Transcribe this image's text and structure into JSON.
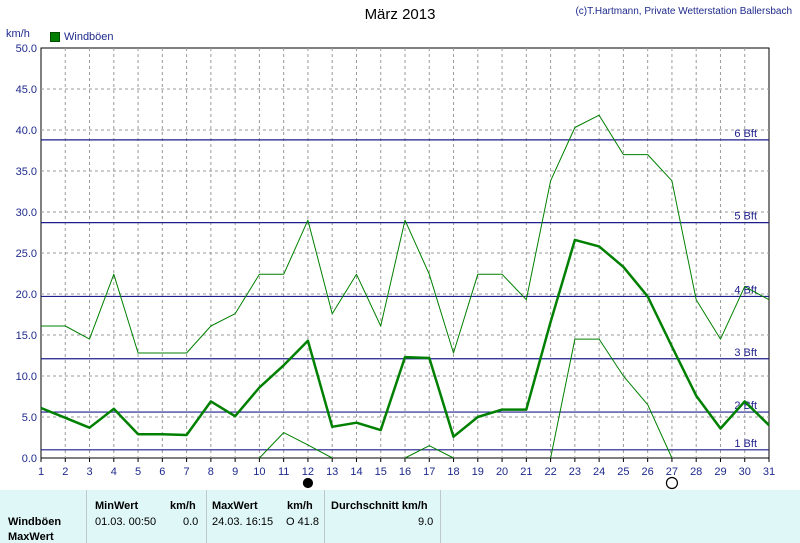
{
  "title": "März 2013",
  "credit": "(c)T.Hartmann, Private Wetterstation Ballersbach",
  "y_unit": "km/h",
  "legend_label": "Windböen",
  "chart_data": {
    "type": "line",
    "title": "März 2013",
    "ylabel": "km/h",
    "xlabel": "",
    "x": [
      1,
      2,
      3,
      4,
      5,
      6,
      7,
      8,
      9,
      10,
      11,
      12,
      13,
      14,
      15,
      16,
      17,
      18,
      19,
      20,
      21,
      22,
      23,
      24,
      25,
      26,
      27,
      28,
      29,
      30,
      31
    ],
    "xlim": [
      1,
      31
    ],
    "ylim": [
      0,
      50
    ],
    "y_ticks": [
      "0.0",
      "5.0",
      "10.0",
      "15.0",
      "20.0",
      "25.0",
      "30.0",
      "35.0",
      "40.0",
      "45.0",
      "50.0"
    ],
    "grid": true,
    "legend_position": "top-left",
    "series": [
      {
        "name": "Windböen",
        "color": "#008000",
        "role": "average",
        "values": [
          6.1,
          4.9,
          3.7,
          6.0,
          2.9,
          2.9,
          2.8,
          6.9,
          5.1,
          8.6,
          11.3,
          14.3,
          3.8,
          4.3,
          3.4,
          12.3,
          12.2,
          2.6,
          5.0,
          5.9,
          5.9,
          16.6,
          26.6,
          25.8,
          23.3,
          19.7,
          13.6,
          7.6,
          3.6,
          6.9,
          4.0
        ]
      },
      {
        "color": "#008000",
        "role": "max",
        "values": [
          16.1,
          16.1,
          14.5,
          22.4,
          12.8,
          12.8,
          12.8,
          16.1,
          17.6,
          22.4,
          22.4,
          29.0,
          17.6,
          22.4,
          16.1,
          29.0,
          22.4,
          12.8,
          22.4,
          22.4,
          19.3,
          33.8,
          40.3,
          41.8,
          37.0,
          37.0,
          33.8,
          19.3,
          14.5,
          20.9,
          19.3
        ]
      },
      {
        "color": "#008000",
        "role": "min",
        "values": [
          null,
          null,
          null,
          null,
          null,
          null,
          null,
          null,
          null,
          0.0,
          3.1,
          1.6,
          0.0,
          null,
          null,
          0.0,
          1.5,
          0.0,
          null,
          null,
          null,
          0.0,
          14.5,
          14.5,
          10.0,
          6.5,
          0.0,
          null,
          null,
          null,
          null
        ]
      }
    ],
    "reference_lines": [
      {
        "label": "1 Bft",
        "y": 1.0
      },
      {
        "label": "2 Bft",
        "y": 5.6
      },
      {
        "label": "3 Bft",
        "y": 12.1
      },
      {
        "label": "4 Bft",
        "y": 19.7
      },
      {
        "label": "5 Bft",
        "y": 28.7
      },
      {
        "label": "6 Bft",
        "y": 38.8
      }
    ],
    "moon_markers": [
      {
        "day": 12,
        "phase": "new-moon"
      },
      {
        "day": 27,
        "phase": "full-moon"
      }
    ]
  },
  "stats": {
    "row_label_1": "Windböen",
    "row_label_2": "MaxWert",
    "min_header": "MinWert",
    "min_unit": "km/h",
    "max_header": "MaxWert",
    "max_unit": "km/h",
    "avg_header": "Durchschnitt km/h",
    "min_datetime": "01.03.  00:50",
    "min_value": "0.0",
    "max_datetime": "24.03.  16:15",
    "max_value": "O 41.8",
    "avg_value": "9.0"
  }
}
